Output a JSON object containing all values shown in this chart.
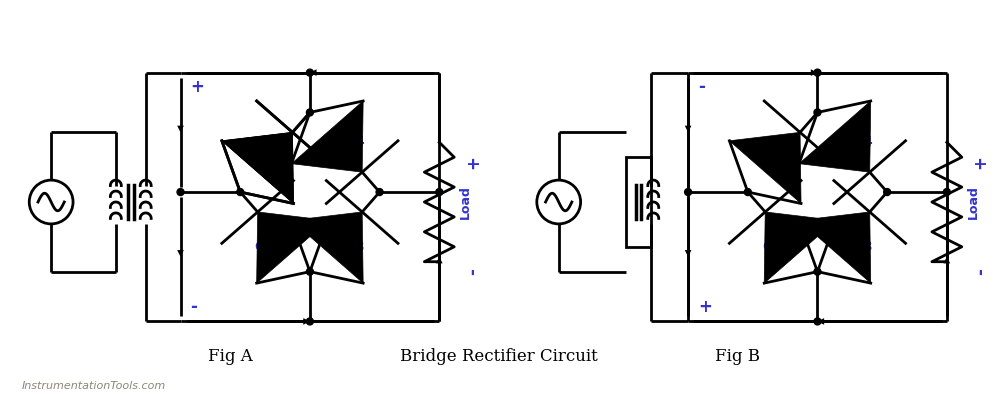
{
  "title": "Bridge Rectifier Circuit",
  "fig_a_label": "Fig A",
  "fig_b_label": "Fig B",
  "watermark": "InstrumentationTools.com",
  "blue": "#3333cc",
  "black": "#000000",
  "bg": "#ffffff",
  "gray": "#888877",
  "line_width": 2.0,
  "figsize": [
    9.98,
    4.04
  ],
  "dpi": 100
}
